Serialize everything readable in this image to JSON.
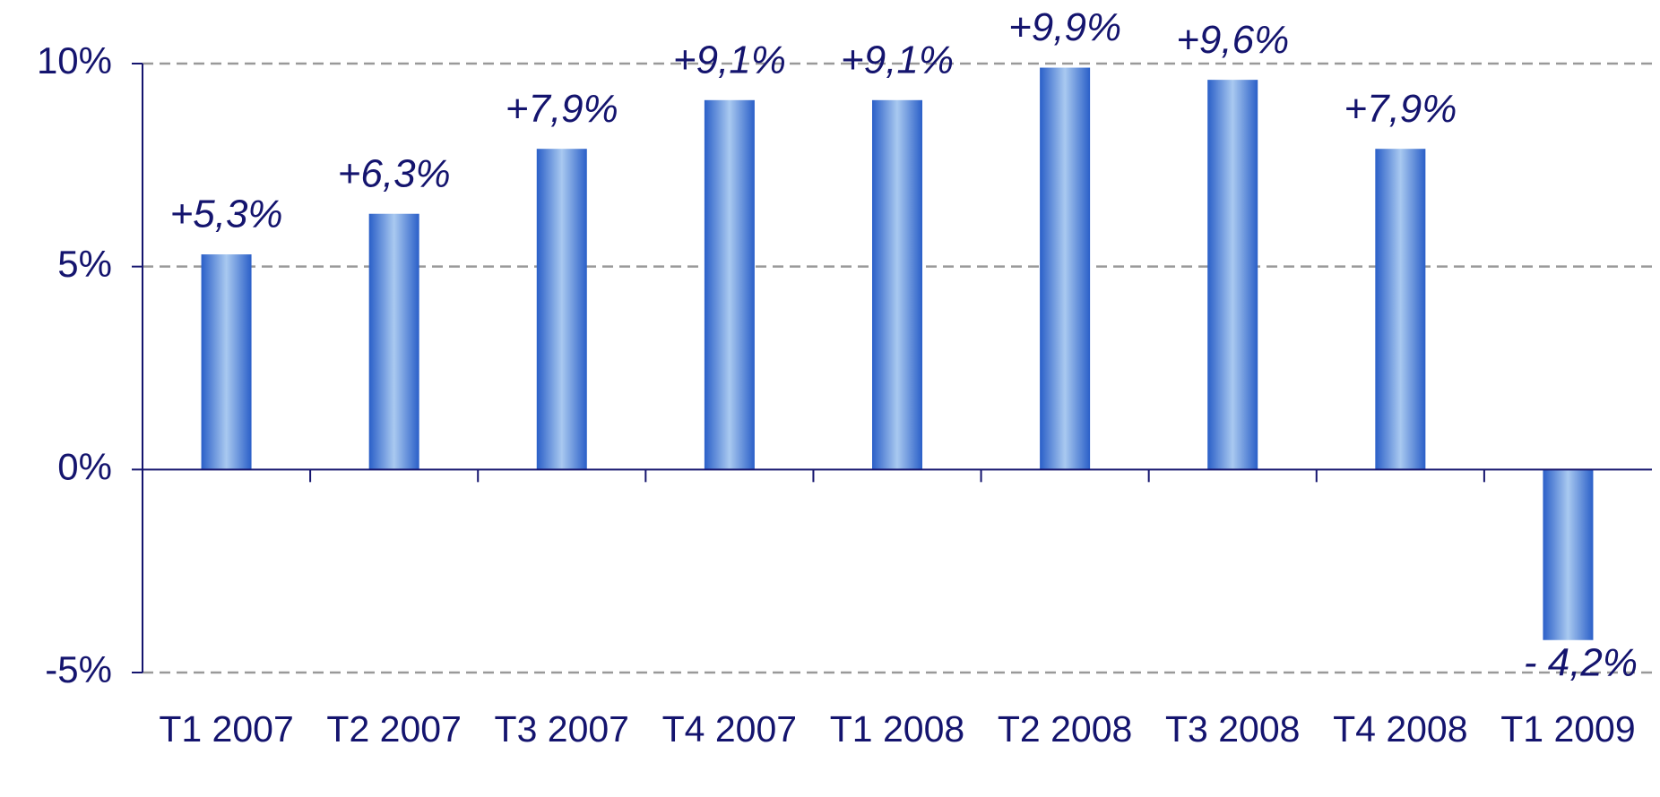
{
  "chart_data": {
    "type": "bar",
    "categories": [
      "T1 2007",
      "T2 2007",
      "T3 2007",
      "T4 2007",
      "T1 2008",
      "T2 2008",
      "T3 2008",
      "T4 2008",
      "T1 2009"
    ],
    "values": [
      5.3,
      6.3,
      7.9,
      9.1,
      9.1,
      9.9,
      9.6,
      7.9,
      -4.2
    ],
    "value_labels": [
      "+5,3%",
      "+6,3%",
      "+7,9%",
      "+9,1%",
      "+9,1%",
      "+9,9%",
      "+9,6%",
      "+7,9%",
      "- 4,2%"
    ],
    "color": "#2a5fc8",
    "ylim": [
      -5,
      10
    ],
    "yticks": [
      {
        "value": -5,
        "label": "-5%"
      },
      {
        "value": 0,
        "label": "0%"
      },
      {
        "value": 5,
        "label": "5%"
      },
      {
        "value": 10,
        "label": "10%"
      }
    ],
    "grid": true
  }
}
